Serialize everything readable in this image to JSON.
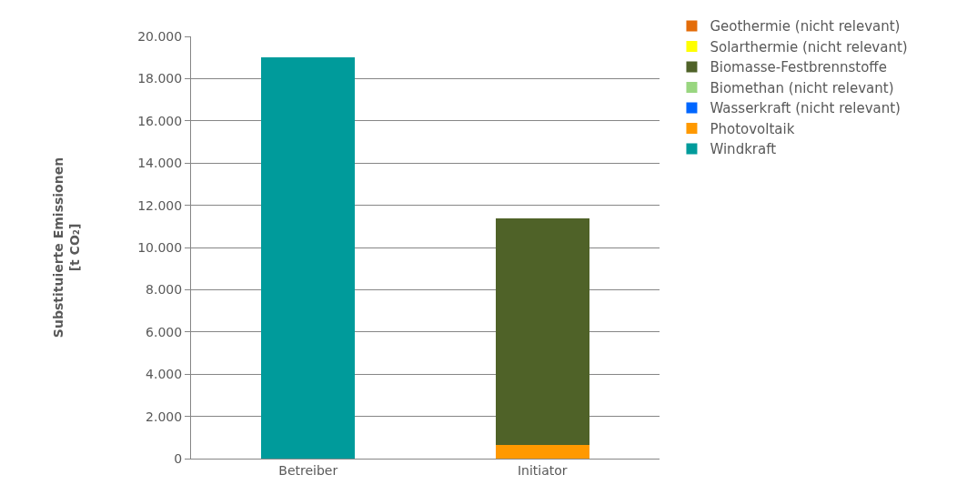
{
  "chart_data": {
    "type": "bar",
    "stacked": true,
    "ylabel": "Substituierte Emissionen\n[t CO₂]",
    "categories": [
      "Betreiber",
      "Initiator"
    ],
    "series": [
      {
        "name": "Windkraft",
        "color": "#009b9b",
        "values": [
          19000,
          0
        ]
      },
      {
        "name": "Photovoltaik",
        "color": "#ff9900",
        "values": [
          0,
          650
        ]
      },
      {
        "name": "Wasserkraft (nicht relevant)",
        "color": "#0066ff",
        "values": [
          0,
          0
        ]
      },
      {
        "name": "Biomethan (nicht relevant)",
        "color": "#99d680",
        "values": [
          0,
          0
        ]
      },
      {
        "name": "Biomasse-Festbrennstoffe",
        "color": "#4f6228",
        "values": [
          0,
          10750
        ]
      },
      {
        "name": "Solarthermie (nicht relevant)",
        "color": "#ffff00",
        "values": [
          0,
          0
        ]
      },
      {
        "name": "Geothermie (nicht relevant)",
        "color": "#e36c09",
        "values": [
          0,
          0
        ]
      }
    ],
    "ylim": [
      0,
      20000
    ],
    "yticks": [
      {
        "value": 0,
        "label": "0"
      },
      {
        "value": 2000,
        "label": "2.000"
      },
      {
        "value": 4000,
        "label": "4.000"
      },
      {
        "value": 6000,
        "label": "6.000"
      },
      {
        "value": 8000,
        "label": "8.000"
      },
      {
        "value": 10000,
        "label": "10.000"
      },
      {
        "value": 12000,
        "label": "12.000"
      },
      {
        "value": 14000,
        "label": "14.000"
      },
      {
        "value": 16000,
        "label": "16.000"
      },
      {
        "value": 18000,
        "label": "18.000"
      },
      {
        "value": 20000,
        "label": "20.000"
      }
    ],
    "grid": "y",
    "legend": "right"
  }
}
